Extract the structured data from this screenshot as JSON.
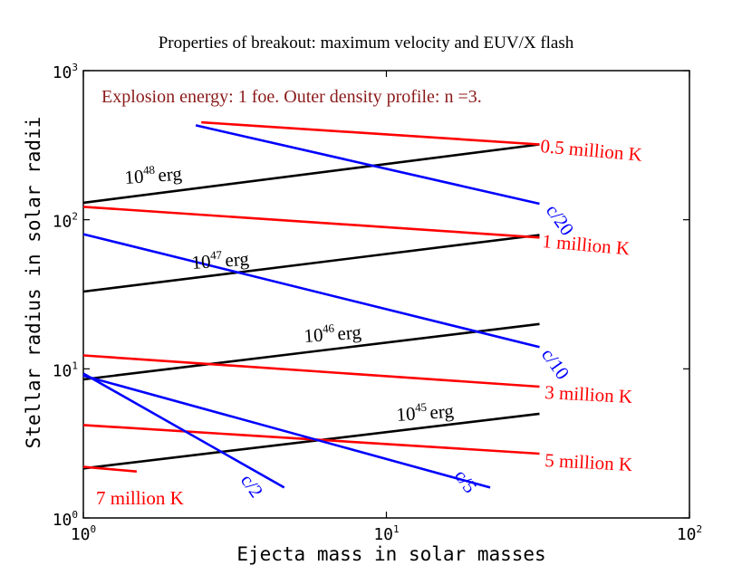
{
  "chart_data": {
    "type": "line",
    "title": "Properties of breakout: maximum velocity and EUV/X flash",
    "xlabel": "Ejecta mass in solar masses",
    "ylabel": "Stellar radius in solar radii",
    "xscale": "log",
    "yscale": "log",
    "xlim": [
      1,
      100
    ],
    "ylim": [
      1,
      1000
    ],
    "grid": false,
    "annotation": "Explosion energy: 1 foe. Outer density profile: n =3.",
    "x_ticks": [
      {
        "base": "10",
        "exp": "0",
        "value": 1
      },
      {
        "base": "10",
        "exp": "1",
        "value": 10
      },
      {
        "base": "10",
        "exp": "2",
        "value": 100
      }
    ],
    "y_ticks": [
      {
        "base": "10",
        "exp": "0",
        "value": 1
      },
      {
        "base": "10",
        "exp": "1",
        "value": 10
      },
      {
        "base": "10",
        "exp": "2",
        "value": 100
      },
      {
        "base": "10",
        "exp": "3",
        "value": 1000
      }
    ],
    "colors": {
      "energy": "#000000",
      "temperature": "#ff0000",
      "velocity": "#0000ff",
      "annotation": "#8b1a1a"
    },
    "series": [
      {
        "group": "energy",
        "label_base": "10",
        "label_exp": "48",
        "label_unit": "erg",
        "x": [
          1,
          32
        ],
        "y": [
          130,
          320
        ]
      },
      {
        "group": "energy",
        "label_base": "10",
        "label_exp": "47",
        "label_unit": "erg",
        "x": [
          1,
          32
        ],
        "y": [
          33,
          79
        ]
      },
      {
        "group": "energy",
        "label_base": "10",
        "label_exp": "46",
        "label_unit": "erg",
        "x": [
          1,
          32
        ],
        "y": [
          8.5,
          20
        ]
      },
      {
        "group": "energy",
        "label_base": "10",
        "label_exp": "45",
        "label_unit": "erg",
        "x": [
          1,
          32
        ],
        "y": [
          2.15,
          5
        ]
      },
      {
        "group": "temperature",
        "label": "0.5 million K",
        "x": [
          2.45,
          32
        ],
        "y": [
          450,
          320
        ]
      },
      {
        "group": "temperature",
        "label": "1 million K",
        "x": [
          1,
          32
        ],
        "y": [
          122,
          76
        ]
      },
      {
        "group": "temperature",
        "label": "3 million K",
        "x": [
          1,
          32
        ],
        "y": [
          12.3,
          7.6
        ]
      },
      {
        "group": "temperature",
        "label": "5 million K",
        "x": [
          1,
          32
        ],
        "y": [
          4.2,
          2.7
        ]
      },
      {
        "group": "temperature",
        "label": "7 million K",
        "x": [
          1,
          1.5
        ],
        "y": [
          2.2,
          2.05
        ]
      },
      {
        "group": "velocity",
        "label": "c/20",
        "x": [
          2.35,
          32
        ],
        "y": [
          430,
          128.0
        ]
      },
      {
        "group": "velocity",
        "label": "c/10",
        "x": [
          1,
          32
        ],
        "y": [
          80,
          14
        ]
      },
      {
        "group": "velocity",
        "label": "c/5",
        "x": [
          1,
          22
        ],
        "y": [
          9,
          1.6
        ]
      },
      {
        "group": "velocity",
        "label": "c/2",
        "x": [
          1,
          4.6
        ],
        "y": [
          9.3,
          1.6
        ]
      }
    ]
  }
}
